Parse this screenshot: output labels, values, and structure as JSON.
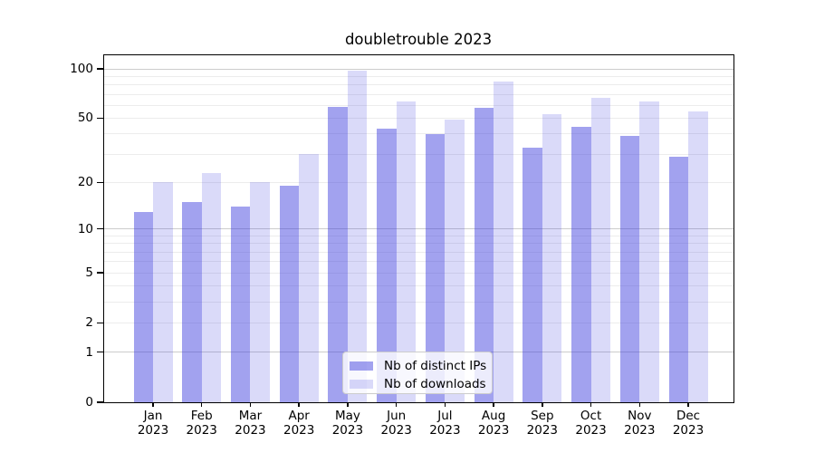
{
  "title": "doubletrouble 2023",
  "chart_data": {
    "type": "bar",
    "title": "doubletrouble 2023",
    "categories": [
      "Jan 2023",
      "Feb 2023",
      "Mar 2023",
      "Apr 2023",
      "May 2023",
      "Jun 2023",
      "Jul 2023",
      "Aug 2023",
      "Sep 2023",
      "Oct 2023",
      "Nov 2023",
      "Dec 2023"
    ],
    "series": [
      {
        "name": "Nb of distinct IPs",
        "color": "rgba(60,60,222,0.48)",
        "values": [
          13,
          15,
          14,
          19,
          59,
          43,
          40,
          58,
          33,
          44,
          39,
          29
        ]
      },
      {
        "name": "Nb of downloads",
        "color": "rgba(60,60,222,0.19)",
        "values": [
          20,
          23,
          20,
          30,
          97,
          63,
          49,
          84,
          53,
          67,
          63,
          55
        ]
      }
    ],
    "xlabel": "",
    "ylabel": "",
    "yscale": "log1p",
    "ylim": [
      0,
      121
    ],
    "y_ticks": [
      0,
      1,
      2,
      5,
      10,
      20,
      50,
      100
    ],
    "grid": {
      "major": [
        1,
        10,
        100
      ],
      "minor": [
        2,
        3,
        4,
        5,
        6,
        7,
        8,
        9,
        20,
        30,
        40,
        50,
        60,
        70,
        80,
        90
      ],
      "major_color": "#cccccc",
      "minor_color": "#ececec"
    },
    "legend_position": "lower center"
  },
  "colors": {
    "bar_dark": "rgba(60,60,222,0.48)",
    "bar_light": "rgba(60,60,222,0.19)",
    "spine": "#000000",
    "background": "#ffffff"
  }
}
